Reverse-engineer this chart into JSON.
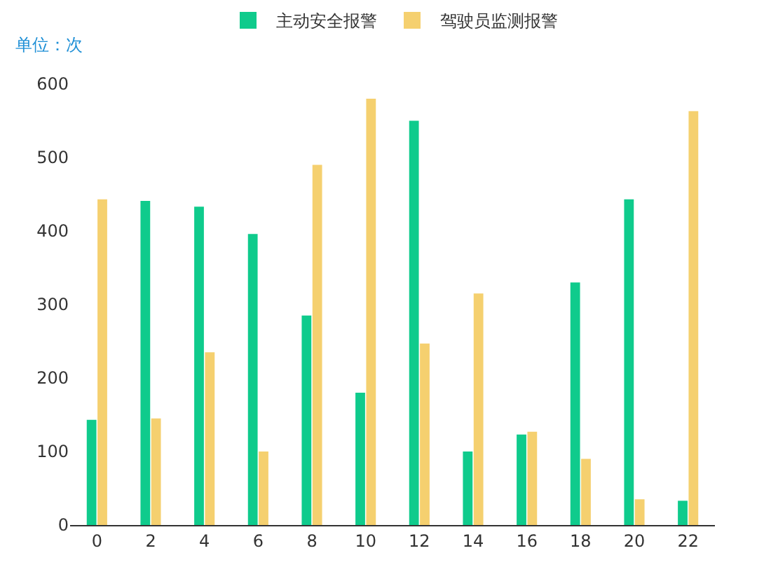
{
  "chart_data": {
    "type": "bar",
    "ylabel": "单位：次",
    "categories": [
      "0",
      "2",
      "4",
      "6",
      "8",
      "10",
      "12",
      "14",
      "16",
      "18",
      "20",
      "22"
    ],
    "series": [
      {
        "name": "主动安全报警",
        "color": "#0fcb8c",
        "values": [
          143,
          441,
          433,
          396,
          285,
          180,
          550,
          100,
          123,
          330,
          443,
          33
        ]
      },
      {
        "name": "驾驶员监测报警",
        "color": "#f5d06f",
        "values": [
          443,
          145,
          235,
          100,
          490,
          580,
          247,
          315,
          127,
          90,
          35,
          563
        ]
      }
    ],
    "ylim": [
      0,
      600
    ],
    "yticks": [
      0,
      100,
      200,
      300,
      400,
      500,
      600
    ],
    "grid": false,
    "legend": "top"
  }
}
